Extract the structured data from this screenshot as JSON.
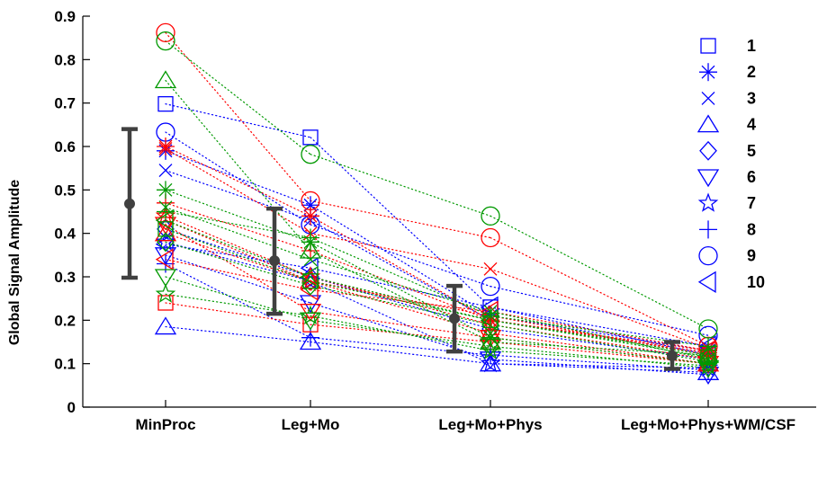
{
  "chart_data": {
    "type": "scatter",
    "title": "",
    "xlabel": "",
    "ylabel": "Global Signal Amplitude",
    "categories": [
      "MinProc",
      "Leg+Mo",
      "Leg+Mo+Phys",
      "Leg+Mo+Phys+WM/CSF"
    ],
    "ylim": [
      0,
      0.9
    ],
    "yticks": [
      "0",
      "0.1",
      "0.2",
      "0.3",
      "0.4",
      "0.5",
      "0.6",
      "0.7",
      "0.8",
      "0.9"
    ],
    "grid": false,
    "legend_position": "top-right",
    "legend": [
      {
        "label": "1",
        "marker": "square"
      },
      {
        "label": "2",
        "marker": "asterisk"
      },
      {
        "label": "3",
        "marker": "x"
      },
      {
        "label": "4",
        "marker": "triangle-up"
      },
      {
        "label": "5",
        "marker": "diamond"
      },
      {
        "label": "6",
        "marker": "triangle-down"
      },
      {
        "label": "7",
        "marker": "star"
      },
      {
        "label": "8",
        "marker": "plus"
      },
      {
        "label": "9",
        "marker": "circle"
      },
      {
        "label": "10",
        "marker": "triangle-left"
      }
    ],
    "colors": {
      "blue": "#0000ff",
      "red": "#ff0000",
      "green": "#009900",
      "mean": "#404040"
    },
    "mean_std": [
      {
        "category": "MinProc",
        "mean": 0.468,
        "low": 0.298,
        "high": 0.64
      },
      {
        "category": "Leg+Mo",
        "mean": 0.337,
        "low": 0.215,
        "high": 0.457
      },
      {
        "category": "Leg+Mo+Phys",
        "mean": 0.204,
        "low": 0.128,
        "high": 0.279
      },
      {
        "category": "Leg+Mo+Phys+WM/CSF",
        "mean": 0.118,
        "low": 0.088,
        "high": 0.15
      }
    ],
    "series": [
      {
        "marker": "square",
        "color": "blue",
        "values": [
          0.698,
          0.621,
          0.23,
          0.12
        ]
      },
      {
        "marker": "asterisk",
        "color": "blue",
        "values": [
          0.59,
          0.465,
          0.21,
          0.13
        ]
      },
      {
        "marker": "x",
        "color": "blue",
        "values": [
          0.545,
          0.43,
          0.2,
          0.125
        ]
      },
      {
        "marker": "triangle-up",
        "color": "blue",
        "values": [
          0.185,
          0.15,
          0.1,
          0.08
        ]
      },
      {
        "marker": "diamond",
        "color": "blue",
        "values": [
          0.41,
          0.3,
          0.18,
          0.11
        ]
      },
      {
        "marker": "triangle-down",
        "color": "blue",
        "values": [
          0.35,
          0.24,
          0.11,
          0.075
        ]
      },
      {
        "marker": "star",
        "color": "blue",
        "values": [
          0.38,
          0.29,
          0.1,
          0.09
        ]
      },
      {
        "marker": "plus",
        "color": "blue",
        "values": [
          0.33,
          0.16,
          0.12,
          0.085
        ]
      },
      {
        "marker": "circle",
        "color": "blue",
        "values": [
          0.633,
          0.42,
          0.278,
          0.165
        ]
      },
      {
        "marker": "triangle-left",
        "color": "blue",
        "values": [
          0.375,
          0.32,
          0.23,
          0.14
        ]
      },
      {
        "marker": "square",
        "color": "red",
        "values": [
          0.24,
          0.19,
          0.15,
          0.1
        ]
      },
      {
        "marker": "asterisk",
        "color": "red",
        "values": [
          0.6,
          0.44,
          0.2,
          0.125
        ]
      },
      {
        "marker": "x",
        "color": "red",
        "values": [
          0.595,
          0.4,
          0.318,
          0.135
        ]
      },
      {
        "marker": "triangle-up",
        "color": "red",
        "values": [
          0.4,
          0.29,
          0.17,
          0.1
        ]
      },
      {
        "marker": "diamond",
        "color": "red",
        "values": [
          0.43,
          0.29,
          0.21,
          0.12
        ]
      },
      {
        "marker": "triangle-down",
        "color": "red",
        "values": [
          0.42,
          0.22,
          0.16,
          0.1
        ]
      },
      {
        "marker": "star",
        "color": "red",
        "values": [
          0.44,
          0.3,
          0.19,
          0.11
        ]
      },
      {
        "marker": "plus",
        "color": "red",
        "values": [
          0.47,
          0.36,
          0.2,
          0.13
        ]
      },
      {
        "marker": "circle",
        "color": "red",
        "values": [
          0.862,
          0.475,
          0.39,
          0.14
        ]
      },
      {
        "marker": "triangle-left",
        "color": "red",
        "values": [
          0.34,
          0.27,
          0.22,
          0.13
        ]
      },
      {
        "marker": "square",
        "color": "green",
        "values": [
          0.41,
          0.29,
          0.2,
          0.115
        ]
      },
      {
        "marker": "asterisk",
        "color": "green",
        "values": [
          0.5,
          0.38,
          0.16,
          0.1
        ]
      },
      {
        "marker": "x",
        "color": "green",
        "values": [
          0.46,
          0.34,
          0.22,
          0.11
        ]
      },
      {
        "marker": "triangle-up",
        "color": "green",
        "values": [
          0.752,
          0.36,
          0.15,
          0.12
        ]
      },
      {
        "marker": "diamond",
        "color": "green",
        "values": [
          0.38,
          0.28,
          0.19,
          0.105
        ]
      },
      {
        "marker": "triangle-down",
        "color": "green",
        "values": [
          0.3,
          0.2,
          0.14,
          0.09
        ]
      },
      {
        "marker": "star",
        "color": "green",
        "values": [
          0.26,
          0.21,
          0.13,
          0.095
        ]
      },
      {
        "marker": "plus",
        "color": "green",
        "values": [
          0.45,
          0.39,
          0.21,
          0.14
        ]
      },
      {
        "marker": "circle",
        "color": "green",
        "values": [
          0.843,
          0.582,
          0.44,
          0.18
        ]
      },
      {
        "marker": "triangle-left",
        "color": "green",
        "values": [
          0.43,
          0.3,
          0.2,
          0.12
        ]
      }
    ]
  }
}
